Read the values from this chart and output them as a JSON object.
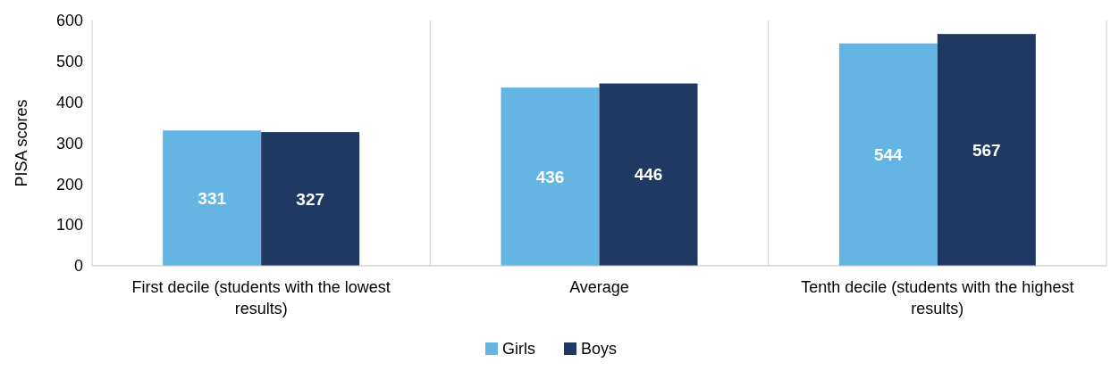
{
  "chart_data": {
    "type": "bar",
    "ylabel": "PISA scores",
    "categories": [
      "First decile (students with the lowest results)",
      "Average",
      "Tenth decile (students with the highest results)"
    ],
    "series": [
      {
        "name": "Girls",
        "color": "#65b5e4",
        "values": [
          331,
          436,
          544
        ]
      },
      {
        "name": "Boys",
        "color": "#203864",
        "values": [
          327,
          446,
          567
        ]
      }
    ],
    "ylim": [
      0,
      600
    ],
    "yticks": [
      0,
      100,
      200,
      300,
      400,
      500,
      600
    ],
    "data_labels": true,
    "grid": false,
    "legend": "bottom"
  }
}
